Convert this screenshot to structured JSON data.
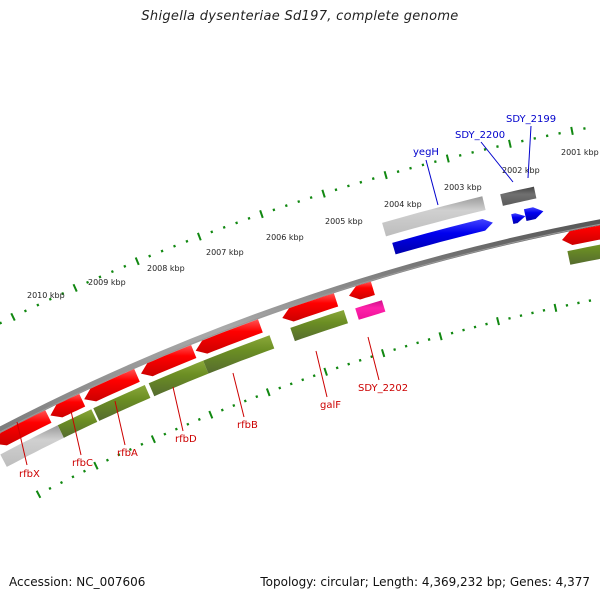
{
  "title": "Shigella dysenteriae Sd197, complete genome",
  "footer": {
    "accession": "Accession: NC_007606",
    "summary": "Topology: circular; Length: 4,369,232 bp; Genes: 4,377"
  },
  "ruler": {
    "unit": "kbp",
    "labels": [
      "2001 kbp",
      "2002 kbp",
      "2003 kbp",
      "2004 kbp",
      "2005 kbp",
      "2006 kbp",
      "2007 kbp",
      "2008 kbp",
      "2009 kbp",
      "2010 kbp"
    ]
  },
  "colors": {
    "forward_label": "#0000cc",
    "reverse_label": "#cc0000",
    "tick": "#118811",
    "cds_red": "#ff0000",
    "cds_green": "#6b8e23",
    "cds_blue": "#0000ee",
    "cds_gray": "#c8c8c8",
    "cds_darkgray": "#666666",
    "cds_pink": "#ff22aa",
    "backbone": "#888888"
  },
  "gene_labels": {
    "forward": [
      "yegH",
      "SDY_2200",
      "SDY_2199"
    ],
    "reverse": [
      "rfbX",
      "rfbC",
      "rfbA",
      "rfbD",
      "rfbB",
      "galF",
      "SDY_2202"
    ]
  }
}
